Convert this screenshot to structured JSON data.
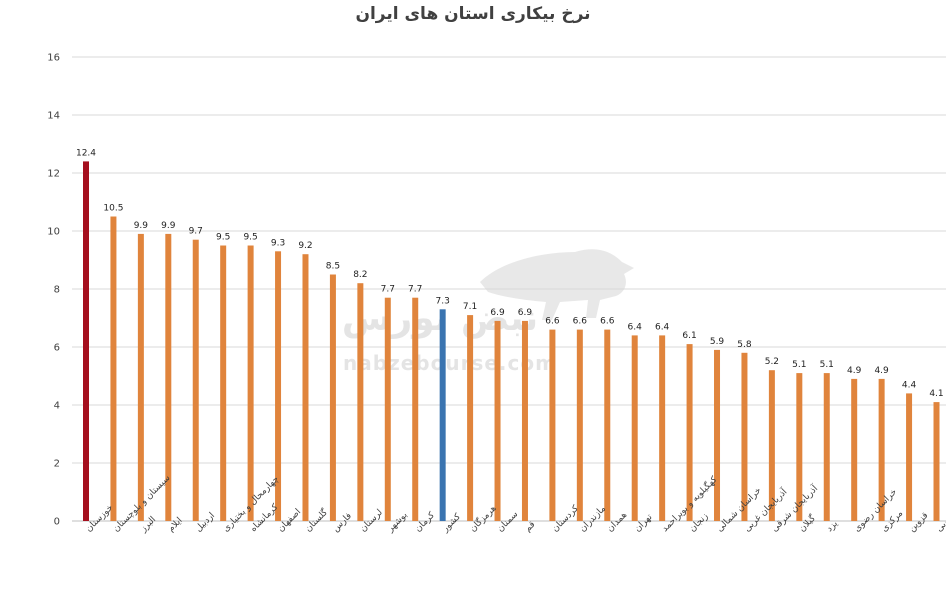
{
  "chart_data": {
    "type": "bar",
    "title": "نرخ بیکاری استان های ایران",
    "xlabel": "",
    "ylabel": "",
    "ylim": [
      0,
      16
    ],
    "yticks": [
      0,
      2,
      4,
      6,
      8,
      10,
      12,
      14,
      16
    ],
    "grid": true,
    "legend": "none",
    "categories": [
      "خوزستان",
      "سیستان و بلوچستان",
      "البرز",
      "ایلام",
      "اردبیل",
      "چهارمحال و بختیاری",
      "کرمانشاه",
      "اصفهان",
      "گلستان",
      "فارس",
      "لرستان",
      "بوشهر",
      "کرمان",
      "کشور",
      "هرمزگان",
      "سمنان",
      "قم",
      "کردستان",
      "مازندران",
      "همدان",
      "تهران",
      "کهگیلویه و بویراحمد",
      "زنجان",
      "خراسان شمالی",
      "آذربایجان غربی",
      "آذربایجان شرقی",
      "گیلان",
      "یزد",
      "خراسان رضوی",
      "مرکزی",
      "قزوین",
      "خراسان جنوبی"
    ],
    "values": [
      12.4,
      10.5,
      9.9,
      9.9,
      9.7,
      9.5,
      9.5,
      9.3,
      9.2,
      8.5,
      8.2,
      7.7,
      7.7,
      7.3,
      7.1,
      6.9,
      6.9,
      6.6,
      6.6,
      6.6,
      6.4,
      6.4,
      6.1,
      5.9,
      5.8,
      5.2,
      5.1,
      5.1,
      4.9,
      4.9,
      4.4,
      4.1
    ],
    "colors": {
      "default": "#e0843c",
      "highlight": "#a50f1e",
      "country": "#3a74b0"
    },
    "highlight_category": "خوزستان",
    "country_category": "کشور"
  },
  "watermark": {
    "logo_text": "نبض بورس",
    "url": "nabzebourse.com"
  }
}
